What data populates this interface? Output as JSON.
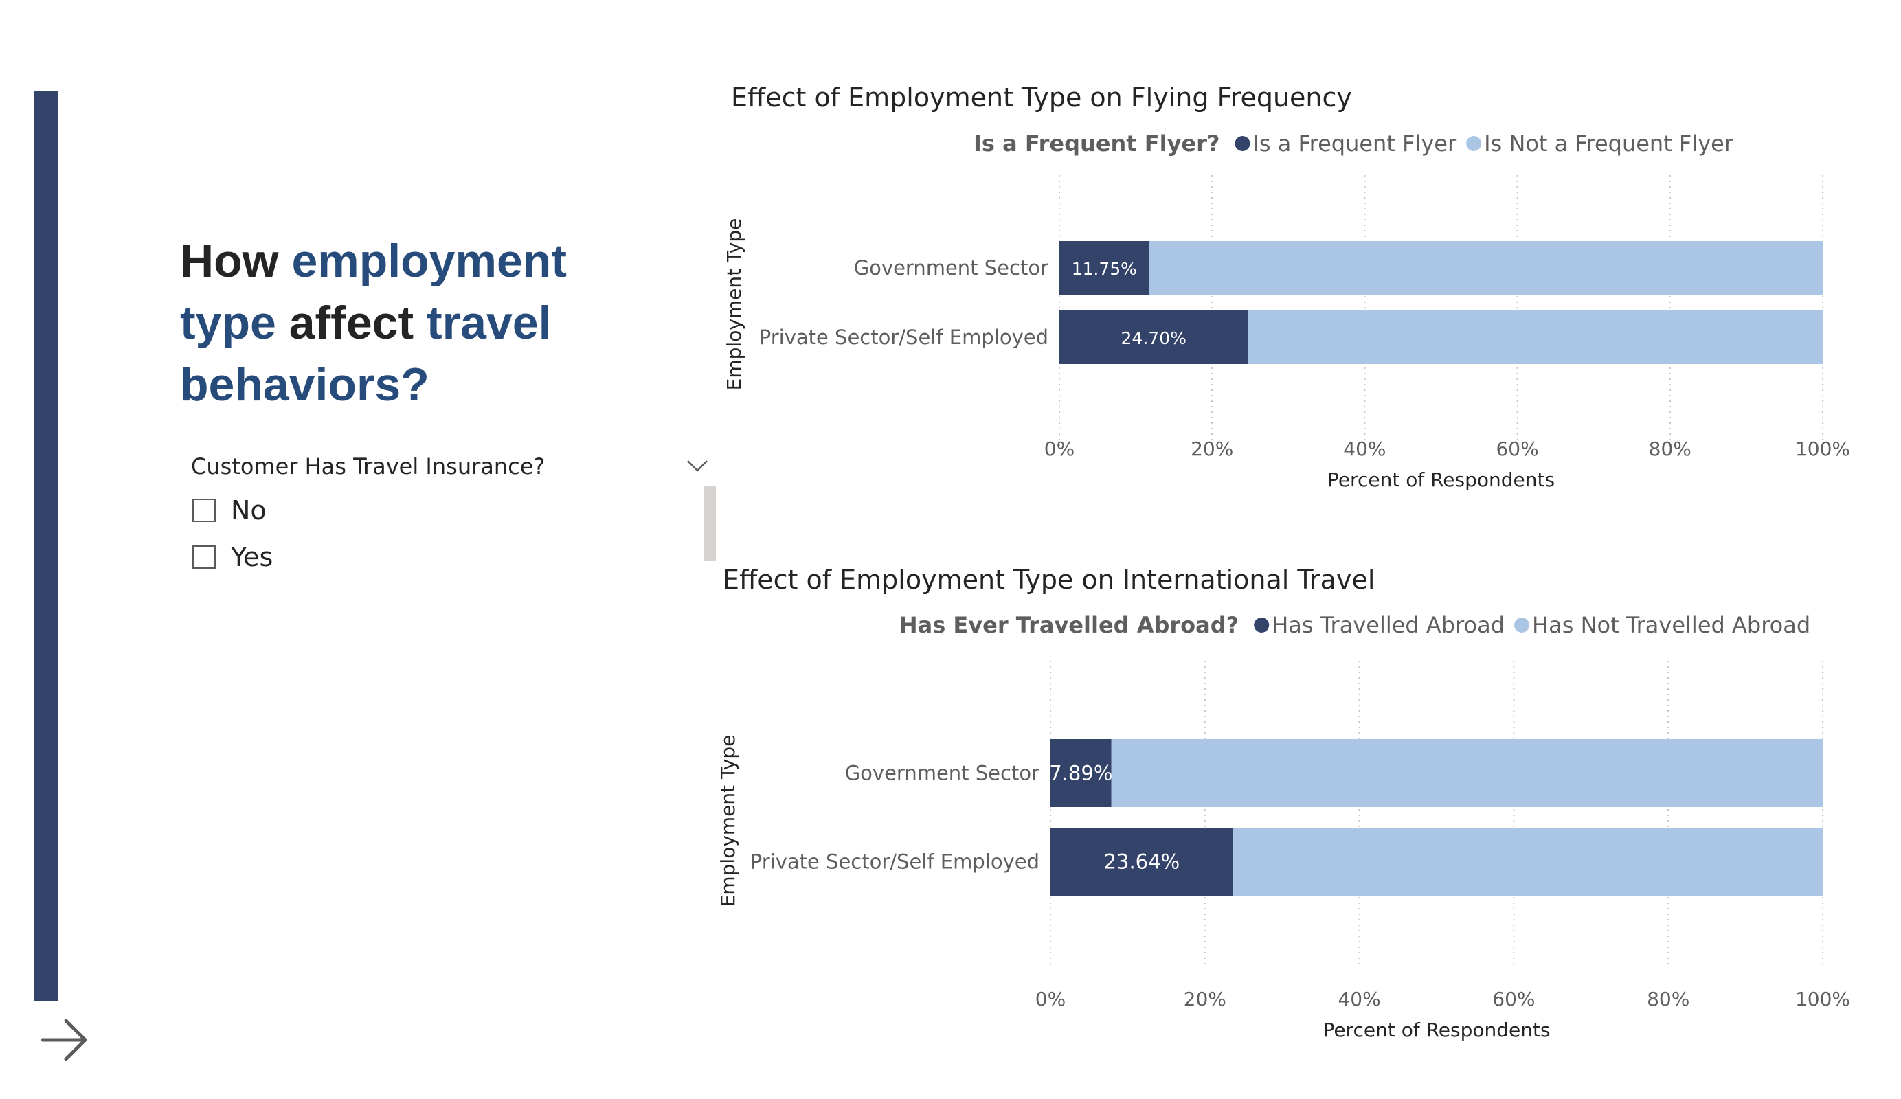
{
  "heading": {
    "parts": [
      {
        "text": "How ",
        "highlight": false
      },
      {
        "text": "employment type",
        "highlight": true
      },
      {
        "text": " affect ",
        "highlight": false
      },
      {
        "text": "travel behaviors?",
        "highlight": true
      }
    ]
  },
  "colors": {
    "accent": "#34436a",
    "heading_highlight": "#274b7a",
    "series_primary": "#34436a",
    "series_secondary": "#abc6e5"
  },
  "icons": {
    "nav": "arrow-right-icon",
    "slicer": "chevron-down-icon"
  },
  "slicer": {
    "title": "Customer Has Travel Insurance?",
    "options": [
      {
        "label": "No",
        "checked": false
      },
      {
        "label": "Yes",
        "checked": false
      }
    ]
  },
  "chart_data": [
    {
      "type": "bar",
      "orientation": "horizontal",
      "stacked": "100%",
      "title": "Effect of Employment Type on Flying Frequency",
      "legend": {
        "title": "Is a Frequent Flyer?",
        "position": "top"
      },
      "categories": [
        "Government Sector",
        "Private Sector/Self Employed"
      ],
      "series": [
        {
          "name": "Is a Frequent Flyer",
          "values": [
            11.75,
            24.7
          ],
          "labels": [
            "11.75%",
            "24.70%"
          ],
          "color": "#34436a"
        },
        {
          "name": "Is Not a Frequent Flyer",
          "values": [
            88.25,
            75.3
          ],
          "color": "#abc6e5"
        }
      ],
      "xlabel": "Percent of Respondents",
      "ylabel": "Employment Type",
      "xlim": [
        0,
        100
      ],
      "xticks": [
        "0%",
        "20%",
        "40%",
        "60%",
        "80%",
        "100%"
      ],
      "grid": "vertical dotted"
    },
    {
      "type": "bar",
      "orientation": "horizontal",
      "stacked": "100%",
      "title": "Effect of Employment Type on International Travel",
      "legend": {
        "title": "Has Ever Travelled Abroad?",
        "position": "top"
      },
      "categories": [
        "Government Sector",
        "Private Sector/Self Employed"
      ],
      "series": [
        {
          "name": "Has Travelled Abroad",
          "values": [
            7.89,
            23.64
          ],
          "labels": [
            "7.89%",
            "23.64%"
          ],
          "color": "#34436a"
        },
        {
          "name": "Has Not Travelled Abroad",
          "values": [
            92.11,
            76.36
          ],
          "color": "#abc6e5"
        }
      ],
      "xlabel": "Percent of Respondents",
      "ylabel": "Employment Type",
      "xlim": [
        0,
        100
      ],
      "xticks": [
        "0%",
        "20%",
        "40%",
        "60%",
        "80%",
        "100%"
      ],
      "grid": "vertical dotted"
    }
  ]
}
